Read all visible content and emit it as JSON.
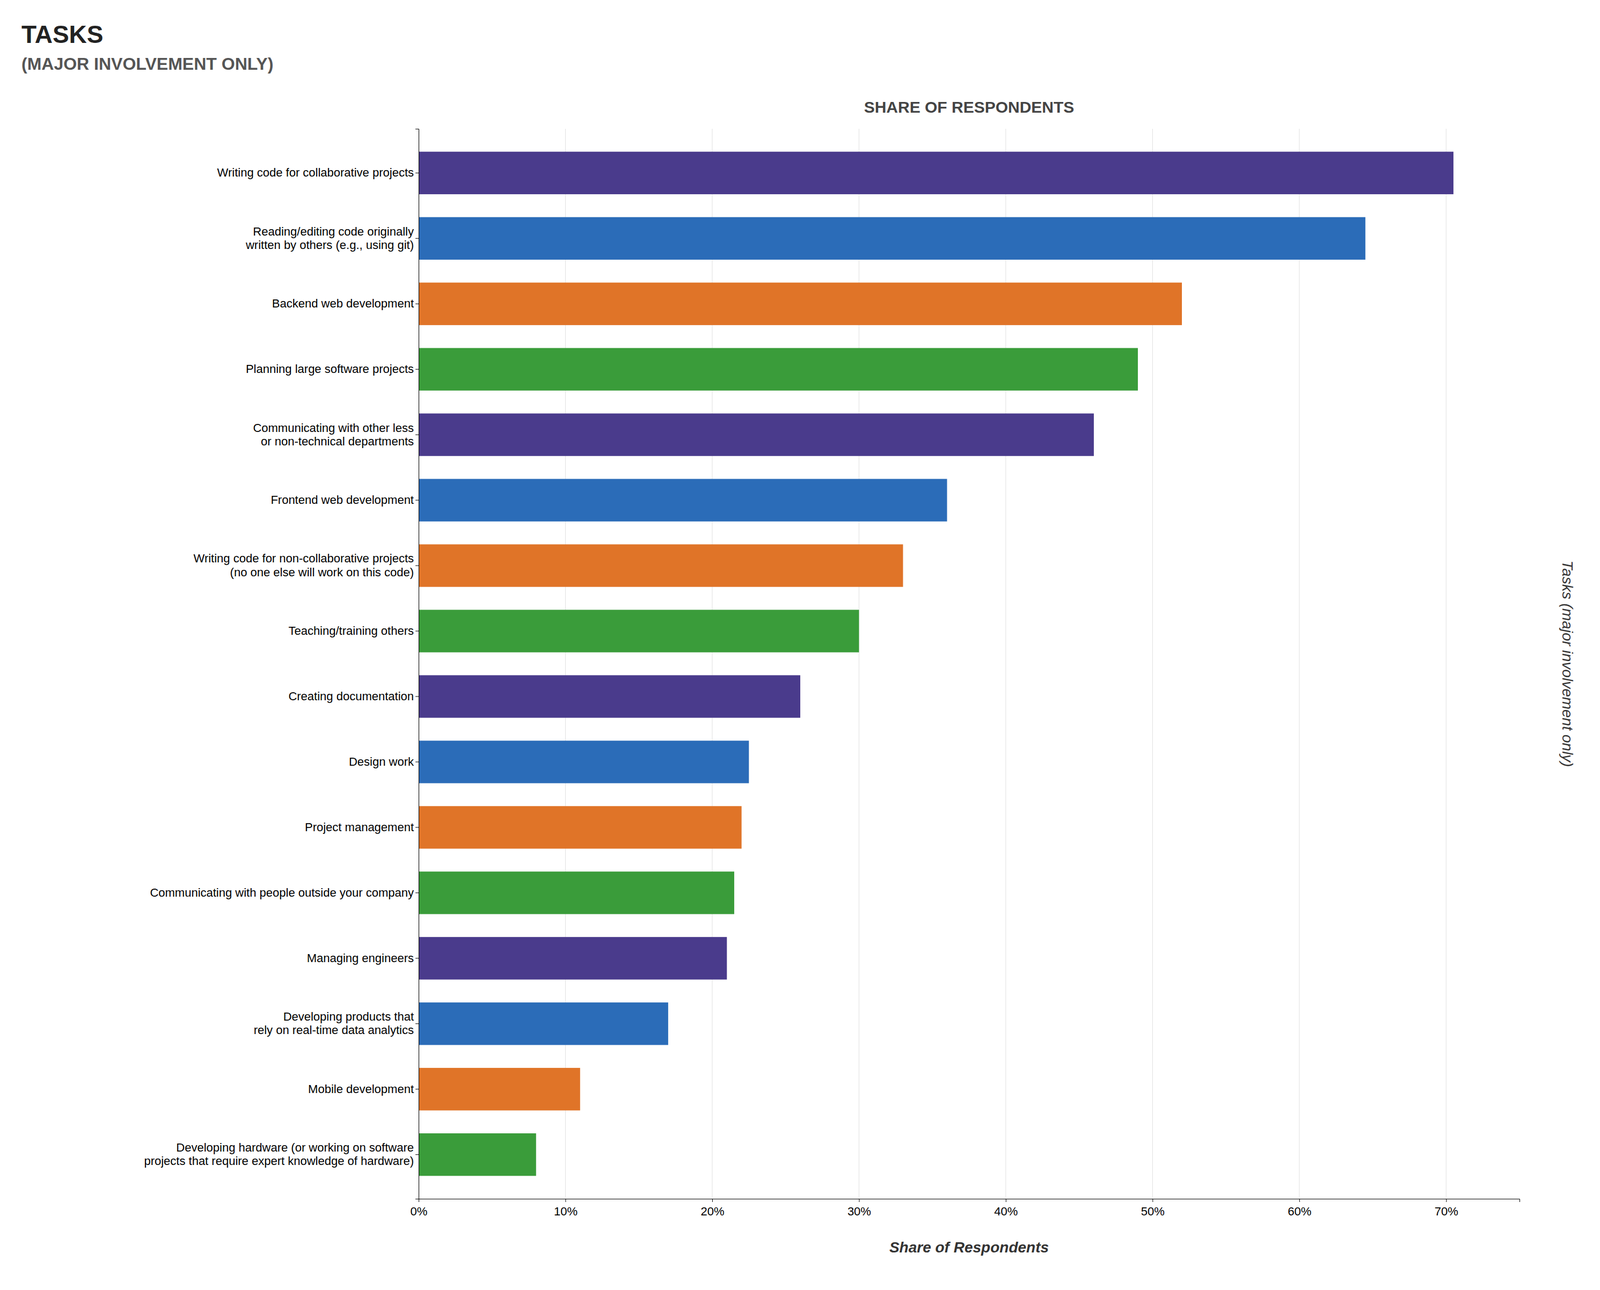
{
  "chart_data": {
    "type": "bar",
    "orientation": "horizontal",
    "title": "TASKS",
    "subtitle": "(MAJOR INVOLVEMENT ONLY)",
    "annotations": [
      {
        "text": "SHARE OF RESPONDENTS"
      }
    ],
    "xlabel": "Share of Respondents",
    "ylabel": "Tasks (major involvement only)",
    "categories": [
      "Writing code for collaborative projects",
      "Reading/editing code originally\nwritten by others (e.g., using git)",
      "Backend web development",
      "Planning large software projects",
      "Communicating with other less\nor non-technical departments",
      "Frontend web development",
      "Writing code for non-collaborative projects\n(no one else will work on this code)",
      "Teaching/training others",
      "Creating documentation",
      "Design work",
      "Project management",
      "Communicating with people outside your company",
      "Managing engineers",
      "Developing products that\nrely on real-time data analytics",
      "Mobile development",
      "Developing hardware (or working on software\nprojects that require expert knowledge of hardware)"
    ],
    "values": [
      70.5,
      64.5,
      52.0,
      49.0,
      46.0,
      36.0,
      33.0,
      30.0,
      26.0,
      22.5,
      22.0,
      21.5,
      21.0,
      17.0,
      11.0,
      8.0
    ],
    "colors": [
      "#4a3b8c",
      "#2b6cb8",
      "#e07428",
      "#3a9c3a",
      "#4a3b8c",
      "#2b6cb8",
      "#e07428",
      "#3a9c3a",
      "#4a3b8c",
      "#2b6cb8",
      "#e07428",
      "#3a9c3a",
      "#4a3b8c",
      "#2b6cb8",
      "#e07428",
      "#3a9c3a"
    ],
    "xlim": [
      0,
      75
    ],
    "xticks": [
      {
        "value": 0,
        "label": "0%"
      },
      {
        "value": 10,
        "label": "10%"
      },
      {
        "value": 20,
        "label": "20%"
      },
      {
        "value": 30,
        "label": "30%"
      },
      {
        "value": 40,
        "label": "40%"
      },
      {
        "value": 50,
        "label": "50%"
      },
      {
        "value": 60,
        "label": "60%"
      },
      {
        "value": 70,
        "label": "70%"
      }
    ],
    "grid": true
  }
}
